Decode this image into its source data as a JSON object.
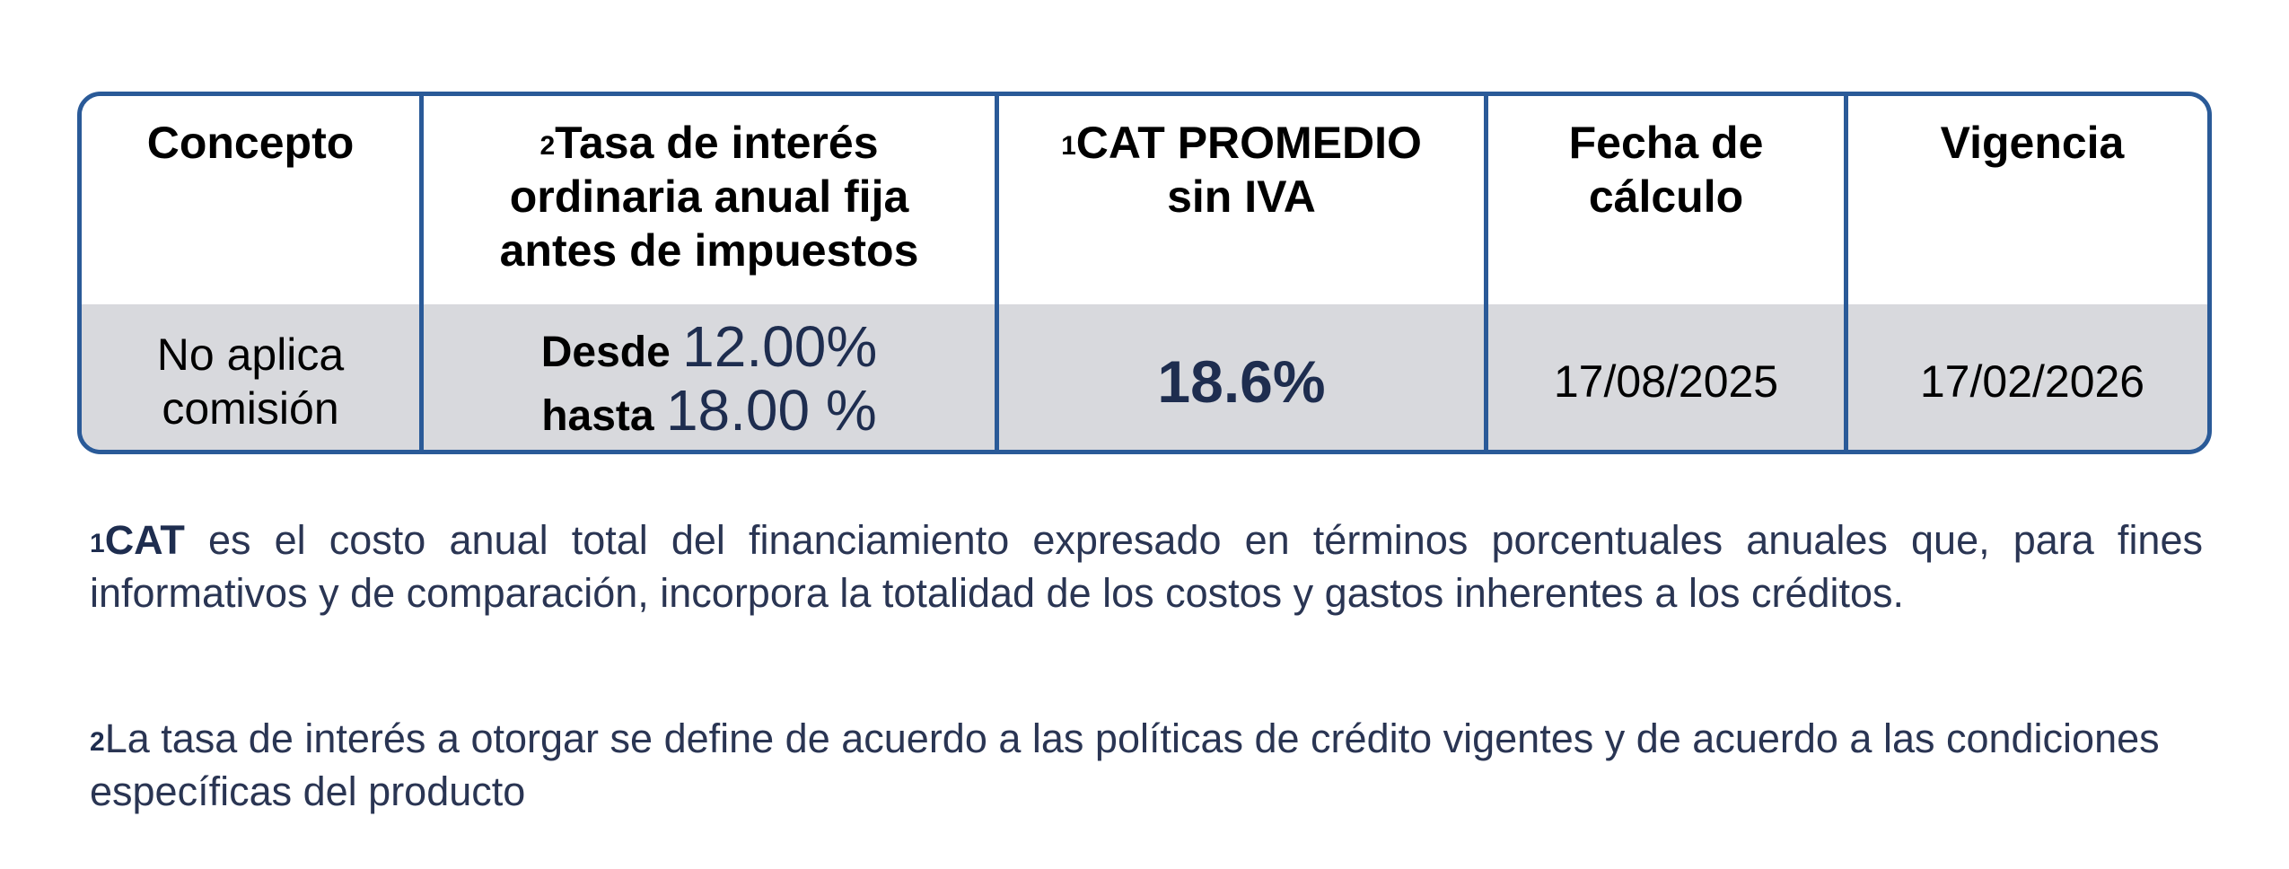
{
  "table": {
    "headers": [
      {
        "sup": "",
        "text": "Concepto"
      },
      {
        "sup": "2",
        "text": "Tasa de interés ordinaria anual fija antes de impuestos"
      },
      {
        "sup": "1",
        "text": "CAT PROMEDIO sin IVA"
      },
      {
        "sup": "",
        "text": "Fecha de cálculo"
      },
      {
        "sup": "",
        "text": "Vigencia"
      }
    ],
    "row": {
      "concepto_line1": "No aplica",
      "concepto_line2": "comisión",
      "rate_from_label": "Desde",
      "rate_from_value": "12.00%",
      "rate_to_label": "hasta",
      "rate_to_value": "18.00 %",
      "cat": "18.6%",
      "fecha_calculo": "17/08/2025",
      "vigencia": "17/02/2026"
    }
  },
  "notes": {
    "note1_sup": "1",
    "note1_bold": "CAT",
    "note1_text": " es el costo anual total del financiamiento expresado en términos porcentuales anuales que, para fines informativos y de comparación, incorpora la totalidad de los costos y gastos inherentes a los créditos.",
    "note2_sup": "2",
    "note2_text": "La tasa de interés a otorgar se define de acuerdo a las políticas de crédito vigentes y de acuerdo a las condiciones específicas del producto"
  },
  "colors": {
    "border": "#2a5a98",
    "row_bg": "#d8d9dd",
    "accent_text": "#1e2d4f"
  }
}
